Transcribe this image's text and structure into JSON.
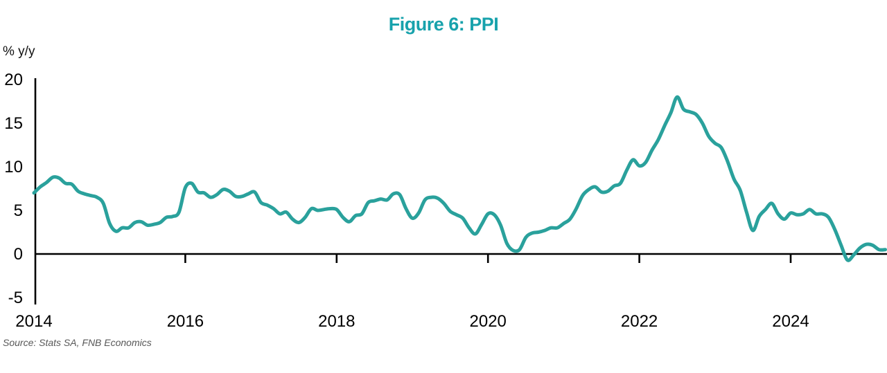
{
  "chart": {
    "title": "Figure 6: PPI",
    "y_unit_label": "% y/y",
    "source": "Source: Stats SA, FNB Economics",
    "colors": {
      "line": "#2aa19c",
      "title": "#18a2ac",
      "axis": "#000000",
      "tick_label": "#000000",
      "source_text": "#575757"
    }
  },
  "chart_data": {
    "type": "line",
    "title": "Figure 6: PPI",
    "xlabel": "",
    "ylabel": "% y/y",
    "ylim": [
      -5,
      20
    ],
    "yticks": [
      20,
      15,
      10,
      5,
      0,
      -5
    ],
    "xticks": [
      2014,
      2016,
      2018,
      2020,
      2022,
      2024
    ],
    "x_range": [
      "2014-01",
      "2025-04"
    ],
    "grid": false,
    "legend": "none",
    "source": "Source: Stats SA, FNB Economics",
    "series": [
      {
        "name": "PPI (% y/y)",
        "start": "2014-01",
        "frequency": "monthly",
        "values": [
          7.0,
          7.7,
          8.2,
          8.8,
          8.7,
          8.1,
          8.0,
          7.2,
          6.9,
          6.7,
          6.5,
          5.8,
          3.5,
          2.6,
          3.0,
          3.0,
          3.6,
          3.7,
          3.3,
          3.4,
          3.6,
          4.2,
          4.3,
          4.8,
          7.6,
          8.1,
          7.1,
          7.0,
          6.5,
          6.8,
          7.4,
          7.2,
          6.6,
          6.6,
          6.9,
          7.1,
          5.9,
          5.6,
          5.2,
          4.6,
          4.8,
          4.0,
          3.6,
          4.2,
          5.2,
          5.0,
          5.1,
          5.2,
          5.1,
          4.2,
          3.7,
          4.4,
          4.6,
          5.9,
          6.1,
          6.3,
          6.2,
          6.9,
          6.8,
          5.2,
          4.1,
          4.7,
          6.2,
          6.5,
          6.4,
          5.8,
          4.9,
          4.5,
          4.1,
          3.0,
          2.3,
          3.4,
          4.6,
          4.5,
          3.3,
          1.2,
          0.4,
          0.5,
          1.9,
          2.4,
          2.5,
          2.7,
          3.0,
          3.0,
          3.5,
          4.0,
          5.2,
          6.7,
          7.4,
          7.7,
          7.1,
          7.2,
          7.8,
          8.1,
          9.6,
          10.8,
          10.1,
          10.5,
          11.9,
          13.1,
          14.7,
          16.2,
          18.0,
          16.6,
          16.3,
          16.0,
          15.0,
          13.5,
          12.7,
          12.2,
          10.6,
          8.6,
          7.3,
          4.8,
          2.7,
          4.3,
          5.1,
          5.8,
          4.6,
          4.0,
          4.7,
          4.5,
          4.6,
          5.1,
          4.6,
          4.6,
          4.2,
          2.8,
          1.0,
          -0.7,
          -0.1,
          0.7,
          1.1,
          1.0,
          0.5,
          0.5
        ]
      }
    ]
  }
}
